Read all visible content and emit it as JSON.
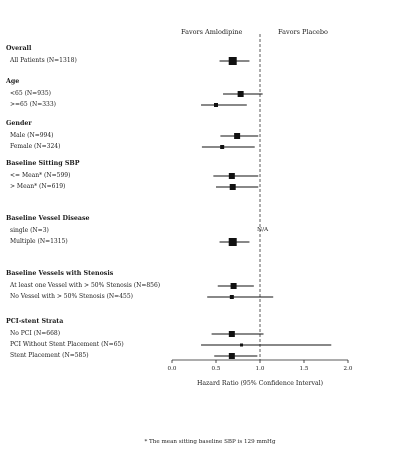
{
  "chart_data": {
    "type": "forest",
    "header_left": "Favors Amlodipine",
    "header_right": "Favors Placebo",
    "xlabel": "Hazard Ratio (95% Confidence Interval)",
    "xlim": [
      0.0,
      2.0
    ],
    "xticks": [
      "0.0",
      "0.5",
      "1.0",
      "1.5",
      "2.0"
    ],
    "reference_line": 1.0,
    "footnote": "* The mean sitting baseline SBP is 129 mmHg",
    "groups": [
      {
        "title": "Overall",
        "rows": [
          {
            "label": "All Patients (N=1318)",
            "hr": 0.69,
            "lo": 0.54,
            "hi": 0.88,
            "marker": "large"
          }
        ]
      },
      {
        "title": "Age",
        "rows": [
          {
            "label": "<65 (N=935)",
            "hr": 0.78,
            "lo": 0.58,
            "hi": 1.03,
            "marker": "medium"
          },
          {
            "label": ">=65 (N=333)",
            "hr": 0.5,
            "lo": 0.33,
            "hi": 0.85,
            "marker": "small"
          }
        ]
      },
      {
        "title": "Gender",
        "rows": [
          {
            "label": "Male (N=994)",
            "hr": 0.74,
            "lo": 0.55,
            "hi": 0.98,
            "marker": "medium"
          },
          {
            "label": "Female (N=324)",
            "hr": 0.57,
            "lo": 0.34,
            "hi": 0.94,
            "marker": "small"
          }
        ]
      },
      {
        "title": "Baseline Sitting SBP",
        "rows": [
          {
            "label": "<= Mean* (N=599)",
            "hr": 0.68,
            "lo": 0.47,
            "hi": 0.98,
            "marker": "medium"
          },
          {
            "label": "> Mean* (N=619)",
            "hr": 0.69,
            "lo": 0.5,
            "hi": 0.98,
            "marker": "medium"
          }
        ]
      },
      {
        "title": "Baseline Vessel Disease",
        "rows": [
          {
            "label": "single (N=3)",
            "hr": null,
            "lo": null,
            "hi": null,
            "marker": "none",
            "note": "N/A"
          },
          {
            "label": "Multiple (N=1315)",
            "hr": 0.69,
            "lo": 0.54,
            "hi": 0.88,
            "marker": "large"
          }
        ]
      },
      {
        "title": "Baseline Vessels with Stenosis",
        "rows": [
          {
            "label": "At least one Vessel with > 50% Stenosis (N=856)",
            "hr": 0.7,
            "lo": 0.52,
            "hi": 0.93,
            "marker": "medium"
          },
          {
            "label": "No Vessel with > 50% Stenosis (N=455)",
            "hr": 0.68,
            "lo": 0.4,
            "hi": 1.15,
            "marker": "small"
          }
        ]
      },
      {
        "title": "PCI-stent Strata",
        "rows": [
          {
            "label": "No PCI (N=668)",
            "hr": 0.68,
            "lo": 0.45,
            "hi": 1.04,
            "marker": "medium"
          },
          {
            "label": "PCI Without Stent Placement (N=65)",
            "hr": 0.79,
            "lo": 0.33,
            "hi": 1.81,
            "marker": "tiny"
          },
          {
            "label": "Stent Placement (N=585)",
            "hr": 0.68,
            "lo": 0.48,
            "hi": 0.97,
            "marker": "medium"
          }
        ]
      }
    ]
  }
}
